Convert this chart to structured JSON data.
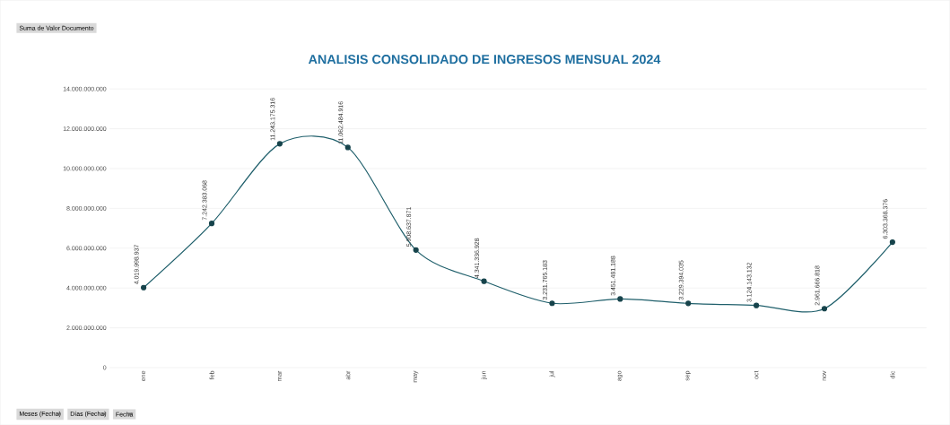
{
  "chart_data": {
    "type": "line",
    "title": "ANALISIS CONSOLIDADO DE INGRESOS MENSUAL 2024",
    "categories": [
      "ene",
      "feb",
      "mar",
      "abr",
      "may",
      "jun",
      "jul",
      "ago",
      "sep",
      "oct",
      "nov",
      "dic"
    ],
    "series": [
      {
        "color": "#1f5f6b",
        "values": [
          4019998937,
          7242383068,
          11243175316,
          11062484916,
          5908637871,
          4341336928,
          3231765183,
          3451481188,
          3229394035,
          3124143132,
          2961666818,
          6303368376
        ],
        "value_labels": [
          "4.019.998.937",
          "7.242.383.068",
          "11.243.175.316",
          "11.062.484.916",
          "5.908.637.871",
          "4.341.336.928",
          "3.231.765.183",
          "3.451.481.188",
          "3.229.394.035",
          "3.124.143.132",
          "2.961.666.818",
          "6.303.368.376"
        ]
      }
    ],
    "ylim": [
      0,
      14000000000
    ],
    "yticks": [
      {
        "value": 0,
        "label": "0"
      },
      {
        "value": 2000000000,
        "label": "2.000.000.000"
      },
      {
        "value": 4000000000,
        "label": "4.000.000.000"
      },
      {
        "value": 6000000000,
        "label": "6.000.000.000"
      },
      {
        "value": 8000000000,
        "label": "8.000.000.000"
      },
      {
        "value": 10000000000,
        "label": "10.000.000.000"
      },
      {
        "value": 12000000000,
        "label": "12.000.000.000"
      },
      {
        "value": 14000000000,
        "label": "14.000.000.000"
      }
    ],
    "grid": "y",
    "marker": "circle",
    "line_style": "solid",
    "annotations": [
      "Suma de Valor Documento",
      "Meses (Fecha)",
      "Días (Fecha)",
      "Fecha"
    ]
  }
}
